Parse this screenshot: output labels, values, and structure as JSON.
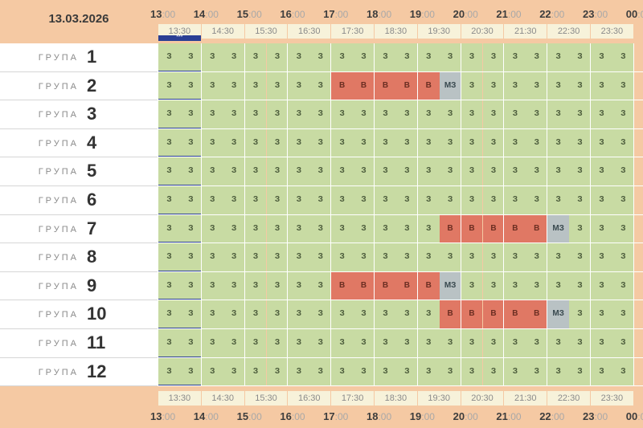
{
  "date": "13.03.2026",
  "hours": [
    "13",
    "14",
    "15",
    "16",
    "17",
    "18",
    "19",
    "20",
    "21",
    "22",
    "23",
    "00"
  ],
  "hour_minutes": ":00",
  "half_hours": [
    "13:30",
    "14:30",
    "15:30",
    "16:30",
    "17:30",
    "18:30",
    "19:30",
    "20:30",
    "21:30",
    "22:30",
    "23:30"
  ],
  "group_word": "ГРУПА",
  "groups": [
    "1",
    "2",
    "3",
    "4",
    "5",
    "6",
    "7",
    "8",
    "9",
    "10",
    "11",
    "12"
  ],
  "current_time_marker": "***",
  "colors": {
    "free": "#c8dba3",
    "busy": "#e07864",
    "mz": "#b9c2c4",
    "now_marker": "#2a3f94"
  },
  "slot_codes": {
    "z": "З",
    "v": "В",
    "m": "МЗ"
  },
  "rows": [
    "zzzzzzzzzzzzzzzzzzzzzz",
    "zzzzzzzzvvvvvmzzzzzzzz",
    "zzzzzzzzzzzzzzzzzzzzzz",
    "zzzzzzzzzzzzzzzzzzzzzz",
    "zzzzzzzzzzzzzzzzzzzzzz",
    "zzzzzzzzzzzzzzzzzzzzzz",
    "zzzzzzzzzzzzzvvvvvmzzz",
    "zzzzzzzzzzzzzzzzzzzzzz",
    "zzzzzzzzvvvvvmzzzzzzzz",
    "zzzzzzzzzzzzzvvvvvmzzz",
    "zzzzzzzzzzzzzzzzzzzzzz",
    "zzzzzzzzzzzzzzzzzzzzzz"
  ]
}
